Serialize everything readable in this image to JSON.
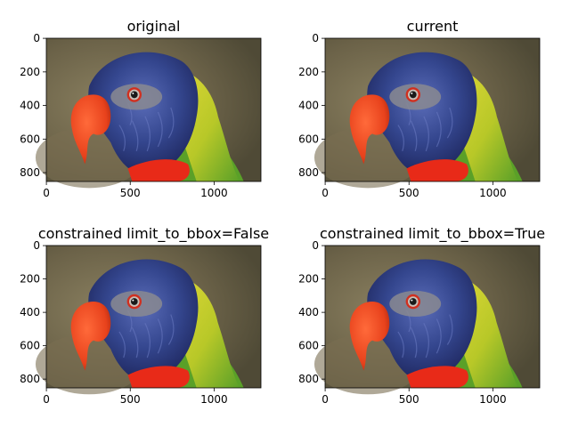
{
  "figure": {
    "panels": [
      {
        "id": "p1",
        "title": "original",
        "x_ticks": [
          "0",
          "500",
          "1000"
        ],
        "y_ticks": [
          "0",
          "200",
          "400",
          "600",
          "800"
        ]
      },
      {
        "id": "p2",
        "title": "current",
        "x_ticks": [
          "0",
          "500",
          "1000"
        ],
        "y_ticks": [
          "0",
          "200",
          "400",
          "600",
          "800"
        ]
      },
      {
        "id": "p3",
        "title": "constrained limit_to_bbox=False",
        "x_ticks": [
          "0",
          "500",
          "1000"
        ],
        "y_ticks": [
          "0",
          "200",
          "400",
          "600",
          "800"
        ]
      },
      {
        "id": "p4",
        "title": "constrained limit_to_bbox=True",
        "x_ticks": [
          "0",
          "500",
          "1000"
        ],
        "y_ticks": [
          "0",
          "200",
          "400",
          "600",
          "800"
        ]
      }
    ]
  },
  "colors": {
    "background": "#6b6248",
    "head": "#2c3a78",
    "head_highlight": "#4a5ea8",
    "beak": "#e8421c",
    "yellow_feathers": "#d8d028",
    "green_feathers": "#5aa028",
    "red_chest": "#e82a18",
    "eye_ring": "#d03020"
  }
}
